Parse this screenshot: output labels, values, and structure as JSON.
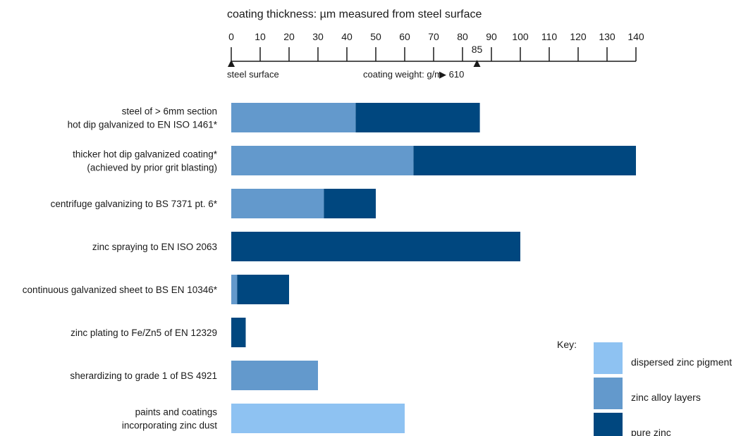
{
  "chart_data": {
    "type": "bar",
    "title": "coating thickness: µm measured from steel surface",
    "xlim": [
      0,
      140
    ],
    "ticks": [
      0,
      10,
      20,
      30,
      40,
      50,
      60,
      70,
      80,
      90,
      100,
      110,
      120,
      130,
      140
    ],
    "markers": [
      {
        "label": "steel surface",
        "value": 0
      },
      {
        "label": "85",
        "value": 85
      }
    ],
    "coating_weight_note": "coating weight: g/m",
    "coating_weight_value": "▶ 610",
    "categories": [
      [
        "steel of > 6mm section",
        "hot dip galvanized to EN ISO 1461*"
      ],
      [
        "thicker hot dip galvanized coating*",
        "(achieved by prior grit blasting)"
      ],
      [
        "centrifuge galvanizing to BS 7371 pt. 6*"
      ],
      [
        "zinc spraying to EN ISO 2063"
      ],
      [
        "continuous galvanized sheet to BS EN 10346*"
      ],
      [
        "zinc plating to Fe/Zn5 of EN 12329"
      ],
      [
        "sherardizing to grade 1 of BS 4921"
      ],
      [
        "paints and coatings",
        "incorporating zinc dust"
      ]
    ],
    "series": [
      {
        "name": "zinc alloy layers",
        "color": "#6399cc",
        "values": [
          43,
          63,
          32,
          0,
          2,
          0,
          30,
          0
        ]
      },
      {
        "name": "pure zinc",
        "color": "#00477f",
        "values": [
          43,
          77,
          18,
          100,
          18,
          5,
          0,
          0
        ]
      },
      {
        "name": "dispersed zinc pigment",
        "color": "#8ec2f2",
        "values": [
          0,
          0,
          0,
          0,
          0,
          0,
          0,
          60
        ]
      }
    ],
    "legend": {
      "title": "Key:",
      "position": "bottom-right"
    }
  }
}
